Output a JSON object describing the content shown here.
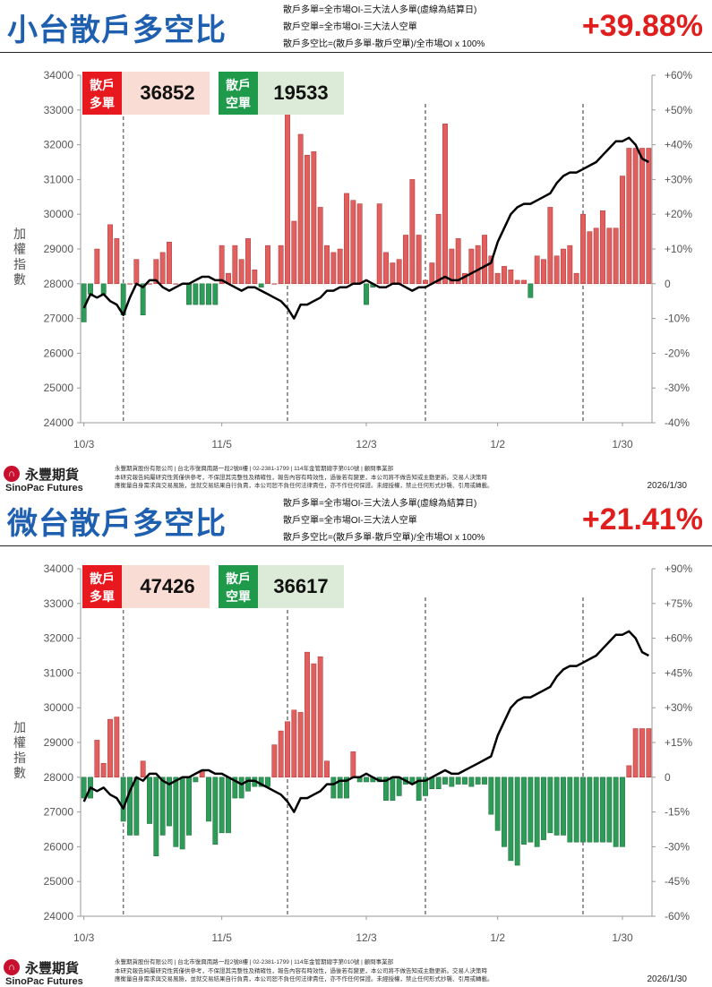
{
  "colors": {
    "title": "#1f5fb0",
    "percent": "#e01e1e",
    "bar_up": "#e06060",
    "bar_down": "#2e9b58",
    "long_badge": "#e8191e",
    "long_box": "#f9dcd3",
    "short_badge": "#1e9a4a",
    "short_box": "#dcebd7"
  },
  "panels": [
    {
      "title": "小台散戶多空比",
      "definitions": [
        "散戶多單=全市場OI-三大法人多單(虛線為結算日)",
        "散戶空單=全市場OI-三大法人空單",
        "散戶多空比=(散戶多單-散戶空單)/全市場OI x 100%"
      ],
      "ratio_text": "+39.88%",
      "long_label": "散戶多單",
      "long_value": "36852",
      "short_label": "散戶空單",
      "short_value": "19533",
      "footer_date": "2026/1/30"
    },
    {
      "title": "微台散戶多空比",
      "definitions": [
        "散戶多單=全市場OI-三大法人多單(虛線為結算日)",
        "散戶空單=全市場OI-三大法人空單",
        "散戶多空比=(散戶多單-散戶空單)/全市場OI x 100%"
      ],
      "ratio_text": "+21.41%",
      "long_label": "散戶多單",
      "long_value": "47426",
      "short_label": "散戶空單",
      "short_value": "36617",
      "footer_date": "2026/1/30"
    }
  ],
  "footer": {
    "logo_cn": "永豐期貨",
    "logo_en": "SinoPac Futures",
    "disclaimer_1": "永豐期貨股份有限公司 | 台北市復興南路一段2號8樓 | 02-2381-1799 | 114年金管期總字第010號 | 顧問事業部",
    "disclaimer_2": "本研究報告純屬研究性質僅供參考，不保證其完整性及精確性，報告內容有時效性，過後若有變更，本公司將不做告知或主動更新。交易人決策時",
    "disclaimer_3": "應衡量自身需求與交易風險，並就交易結果自行負責，本公司恕不負任何法律責任，亦不作任何保證。未經授權，禁止任何形式抄襲、引用或轉載。"
  },
  "chart_data": [
    {
      "type": "bar+line",
      "ylabel": "加權指數",
      "left_axis_range": [
        24000,
        34000
      ],
      "left_ticks": [
        "24000",
        "25000",
        "26000",
        "27000",
        "28000",
        "29000",
        "30000",
        "31000",
        "32000",
        "33000",
        "34000"
      ],
      "right_axis_range": [
        -40,
        60
      ],
      "right_ticks": [
        "-40%",
        "-30%",
        "-20%",
        "-10%",
        "0",
        "+10%",
        "+20%",
        "+30%",
        "+40%",
        "+50%",
        "+60%"
      ],
      "x_labels": [
        "10/3",
        "11/5",
        "12/3",
        "1/2",
        "1/30"
      ],
      "x_label_index": [
        0,
        21,
        43,
        63,
        82
      ],
      "settlement_index": [
        6,
        31,
        52,
        76
      ],
      "ratio_pct": [
        -11,
        -3,
        10,
        -3,
        17,
        13,
        -9,
        0,
        7,
        -9,
        0,
        7,
        9,
        12,
        0,
        0,
        -6,
        -6,
        -6,
        -6,
        -6,
        11,
        3,
        11,
        7,
        13,
        4,
        -1,
        11,
        0,
        11,
        50,
        18,
        43,
        37,
        38,
        22,
        11,
        9,
        10,
        26,
        24,
        23,
        -6,
        -1,
        23,
        9,
        6,
        7,
        14,
        30,
        14,
        1,
        6,
        20,
        46,
        10,
        13,
        3,
        10,
        11,
        14,
        8,
        3,
        5,
        4,
        1,
        1,
        -4,
        8,
        7,
        22,
        8,
        10,
        11,
        3,
        20,
        15,
        16,
        21,
        16,
        16,
        31,
        39,
        39,
        39,
        39
      ]
    },
    {
      "type": "bar+line",
      "ylabel": "加權指數",
      "left_axis_range": [
        24000,
        34000
      ],
      "left_ticks": [
        "24000",
        "25000",
        "26000",
        "27000",
        "28000",
        "29000",
        "30000",
        "31000",
        "32000",
        "33000",
        "34000"
      ],
      "right_axis_range": [
        -60,
        90
      ],
      "right_ticks": [
        "-60%",
        "-45%",
        "-30%",
        "-15%",
        "0",
        "+15%",
        "+30%",
        "+45%",
        "+60%",
        "+75%",
        "+90%"
      ],
      "x_labels": [
        "10/3",
        "11/5",
        "12/3",
        "1/2",
        "1/30"
      ],
      "x_label_index": [
        0,
        21,
        43,
        63,
        82
      ],
      "settlement_index": [
        6,
        31,
        52,
        76
      ],
      "ratio_pct": [
        -9,
        -9,
        16,
        6,
        25,
        26,
        -19,
        -25,
        -25,
        7,
        -20,
        -34,
        -25,
        -21,
        -30,
        -31,
        -25,
        -2,
        3,
        -19,
        -29,
        -24,
        -24,
        -9,
        -9,
        -6,
        -4,
        -4,
        -4,
        14,
        20,
        24,
        29,
        28,
        54,
        49,
        52,
        7,
        -9,
        -9,
        -9,
        11,
        -2,
        -2,
        -2,
        -2,
        -10,
        -10,
        -8,
        -3,
        -3,
        -10,
        -8,
        -5,
        -5,
        -3,
        -4,
        -3,
        -3,
        -4,
        -3,
        -3,
        -16,
        -23,
        -30,
        -36,
        -38,
        -29,
        -28,
        -30,
        -27,
        -24,
        -25,
        -25,
        -28,
        -28,
        -28,
        -28,
        -28,
        -28,
        -28,
        -30,
        -30,
        5,
        21,
        21,
        21
      ]
    }
  ]
}
